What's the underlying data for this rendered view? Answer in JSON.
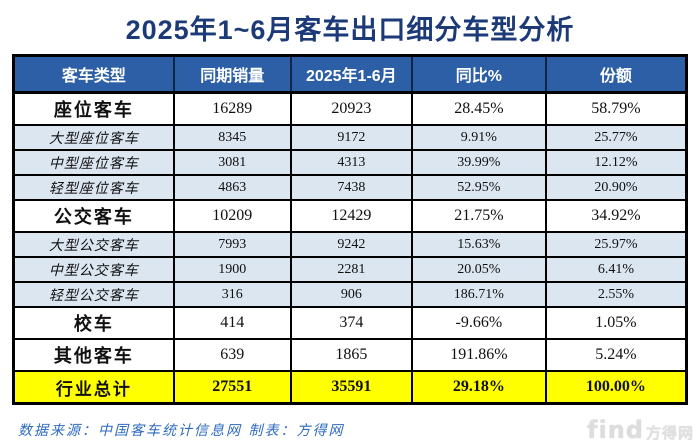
{
  "title": "2025年1~6月客车出口细分车型分析",
  "colors": {
    "title_text": "#1b3a77",
    "header_bg": "#2c5fa5",
    "header_text": "#ffffff",
    "sub_row_bg": "#dce6f1",
    "total_row_bg": "#ffff00",
    "border": "#000000",
    "footer_text": "#2e6bc0"
  },
  "table": {
    "headers": [
      "客车类型",
      "同期销量",
      "2025年1-6月",
      "同比%",
      "份额"
    ],
    "rows": [
      {
        "type": "main",
        "cells": [
          "座位客车",
          "16289",
          "20923",
          "28.45%",
          "58.79%"
        ]
      },
      {
        "type": "sub",
        "cells": [
          "大型座位客车",
          "8345",
          "9172",
          "9.91%",
          "25.77%"
        ]
      },
      {
        "type": "sub",
        "cells": [
          "中型座位客车",
          "3081",
          "4313",
          "39.99%",
          "12.12%"
        ]
      },
      {
        "type": "sub",
        "cells": [
          "轻型座位客车",
          "4863",
          "7438",
          "52.95%",
          "20.90%"
        ]
      },
      {
        "type": "main",
        "cells": [
          "公交客车",
          "10209",
          "12429",
          "21.75%",
          "34.92%"
        ]
      },
      {
        "type": "sub",
        "cells": [
          "大型公交客车",
          "7993",
          "9242",
          "15.63%",
          "25.97%"
        ]
      },
      {
        "type": "sub",
        "cells": [
          "中型公交客车",
          "1900",
          "2281",
          "20.05%",
          "6.41%"
        ]
      },
      {
        "type": "sub",
        "cells": [
          "轻型公交客车",
          "316",
          "906",
          "186.71%",
          "2.55%"
        ]
      },
      {
        "type": "main",
        "cells": [
          "校车",
          "414",
          "374",
          "-9.66%",
          "1.05%"
        ]
      },
      {
        "type": "main",
        "cells": [
          "其他客车",
          "639",
          "1865",
          "191.86%",
          "5.24%"
        ]
      },
      {
        "type": "total",
        "cells": [
          "行业总计",
          "27551",
          "35591",
          "29.18%",
          "100.00%"
        ]
      }
    ]
  },
  "footer": {
    "text": "数据来源：中国客车统计信息网  制表：方得网"
  },
  "watermark": {
    "brand_en": "find",
    "brand_cn": "方得网"
  },
  "chart_data": {
    "type": "table",
    "title": "2025年1~6月客车出口细分车型分析",
    "columns": [
      "客车类型",
      "同期销量",
      "2025年1-6月",
      "同比%",
      "份额"
    ],
    "rows": [
      [
        "座位客车",
        16289,
        20923,
        "28.45%",
        "58.79%"
      ],
      [
        "大型座位客车",
        8345,
        9172,
        "9.91%",
        "25.77%"
      ],
      [
        "中型座位客车",
        3081,
        4313,
        "39.99%",
        "12.12%"
      ],
      [
        "轻型座位客车",
        4863,
        7438,
        "52.95%",
        "20.90%"
      ],
      [
        "公交客车",
        10209,
        12429,
        "21.75%",
        "34.92%"
      ],
      [
        "大型公交客车",
        7993,
        9242,
        "15.63%",
        "25.97%"
      ],
      [
        "中型公交客车",
        1900,
        2281,
        "20.05%",
        "6.41%"
      ],
      [
        "轻型公交客车",
        316,
        906,
        "186.71%",
        "2.55%"
      ],
      [
        "校车",
        414,
        374,
        "-9.66%",
        "1.05%"
      ],
      [
        "其他客车",
        639,
        1865,
        "191.86%",
        "5.24%"
      ],
      [
        "行业总计",
        27551,
        35591,
        "29.18%",
        "100.00%"
      ]
    ],
    "notes": "数据来源：中国客车统计信息网 制表：方得网",
    "highlight_row": "行业总计 (yellow)"
  }
}
